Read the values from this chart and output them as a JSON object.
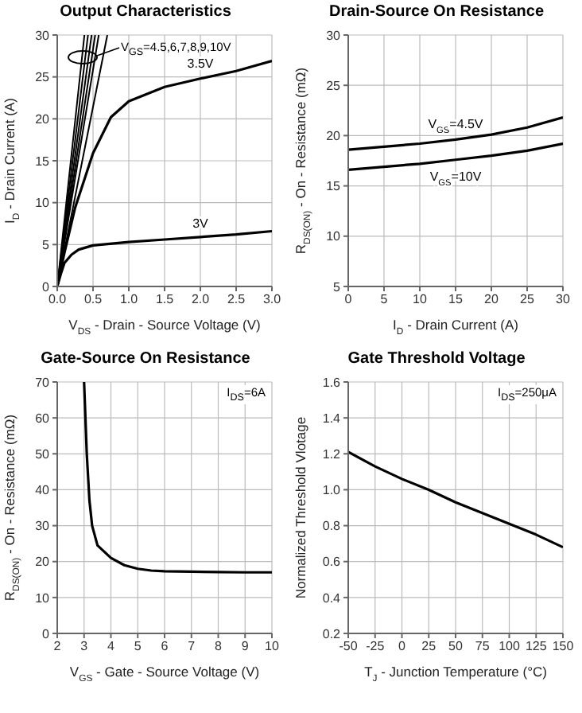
{
  "chart_data": [
    {
      "type": "line",
      "title": "Output Characteristics",
      "xlabel": "V$_{DS}$ - Drain - Source Voltage (V)",
      "ylabel": "I$_{D}$ - Drain Current (A)",
      "xlim": [
        0,
        3
      ],
      "ylim": [
        0,
        30
      ],
      "xticks": [
        {
          "value": 0,
          "label": "0.0"
        },
        0.5,
        {
          "value": 1,
          "label": "1.0"
        },
        1.5,
        {
          "value": 2,
          "label": "2.0"
        },
        2.5,
        {
          "value": 3,
          "label": "3.0"
        }
      ],
      "yticks": [
        0,
        5,
        10,
        15,
        20,
        25,
        30
      ],
      "grid": true,
      "marker": "none",
      "annotations": [
        "V$_{GS}$=4.5,6,7,8,9,10V"
      ],
      "series": [
        {
          "color": "#000000",
          "x": [
            0,
            0.38
          ],
          "values": [
            0,
            30
          ]
        },
        {
          "color": "#000000",
          "x": [
            0,
            0.43
          ],
          "values": [
            0,
            30
          ]
        },
        {
          "color": "#000000",
          "x": [
            0,
            0.48
          ],
          "values": [
            0,
            30
          ]
        },
        {
          "color": "#000000",
          "x": [
            0,
            0.53
          ],
          "values": [
            0,
            30
          ]
        },
        {
          "color": "#000000",
          "x": [
            0,
            0.58
          ],
          "values": [
            0,
            30
          ]
        },
        {
          "color": "#000000",
          "x": [
            0,
            0.7
          ],
          "values": [
            0,
            30
          ]
        },
        {
          "name": "3.5V",
          "color": "#000000",
          "x": [
            0,
            0.05,
            0.1,
            0.15,
            0.25,
            0.5,
            0.75,
            1.0,
            1.5,
            2.0,
            2.5,
            3.0
          ],
          "values": [
            0,
            2,
            4,
            5.8,
            9.4,
            15.9,
            20.2,
            22.1,
            23.8,
            24.8,
            25.7,
            26.9
          ]
        },
        {
          "name": "3V",
          "color": "#000000",
          "x": [
            0,
            0.05,
            0.1,
            0.2,
            0.3,
            0.5,
            1.0,
            1.5,
            2.0,
            2.5,
            3.0
          ],
          "values": [
            0,
            1.5,
            2.8,
            3.8,
            4.4,
            4.9,
            5.3,
            5.6,
            5.9,
            6.2,
            6.6
          ]
        }
      ]
    },
    {
      "type": "line",
      "title": "Drain-Source On Resistance",
      "xlabel": "I$_{D}$ - Drain Current (A)",
      "ylabel": "R$_{DS(ON)}$ - On - Resistance (mΩ)",
      "xlim": [
        0,
        30
      ],
      "ylim": [
        5,
        30
      ],
      "xticks": [
        0,
        5,
        10,
        15,
        20,
        25,
        30
      ],
      "yticks": [
        5,
        10,
        15,
        20,
        25,
        30
      ],
      "grid": true,
      "marker": "none",
      "series": [
        {
          "name": "V$_{GS}$=4.5V",
          "color": "#000000",
          "x": [
            0,
            5,
            10,
            15,
            20,
            25,
            30
          ],
          "values": [
            18.6,
            18.9,
            19.2,
            19.6,
            20.1,
            20.8,
            21.8
          ]
        },
        {
          "name": "V$_{GS}$=10V",
          "color": "#000000",
          "x": [
            0,
            5,
            10,
            15,
            20,
            25,
            30
          ],
          "values": [
            16.6,
            16.9,
            17.2,
            17.6,
            18.0,
            18.5,
            19.2
          ]
        }
      ]
    },
    {
      "type": "line",
      "title": "Gate-Source On Resistance",
      "xlabel": "V$_{GS}$ - Gate - Source Voltage (V)",
      "ylabel": "R$_{DS(ON)}$ - On - Resistance (mΩ)",
      "xlim": [
        2,
        10
      ],
      "ylim": [
        0,
        70
      ],
      "xticks": [
        2,
        3,
        4,
        5,
        6,
        7,
        8,
        9,
        10
      ],
      "yticks": [
        0,
        10,
        20,
        30,
        40,
        50,
        60,
        70
      ],
      "grid": true,
      "marker": "none",
      "annotations": [
        "I$_{DS}$=6A"
      ],
      "series": [
        {
          "color": "#000000",
          "x": [
            3.0,
            3.1,
            3.2,
            3.3,
            3.5,
            4,
            4.5,
            5,
            5.5,
            6,
            7,
            8,
            9,
            10
          ],
          "values": [
            70,
            50,
            37,
            30,
            24.5,
            21,
            19,
            18,
            17.5,
            17.3,
            17.2,
            17.1,
            17.0,
            17.0
          ]
        }
      ]
    },
    {
      "type": "line",
      "title": "Gate Threshold Voltage",
      "xlabel": "T$_{J}$ - Junction Temperature (°C)",
      "ylabel": "Normalized Threshold Vlotage",
      "xlim": [
        -50,
        150
      ],
      "ylim": [
        0.2,
        1.6
      ],
      "xticks": [
        -50,
        -25,
        0,
        25,
        50,
        75,
        100,
        125,
        150
      ],
      "yticks": [
        0.2,
        0.4,
        0.6,
        0.8,
        {
          "value": 1,
          "label": "1.0"
        },
        1.2,
        1.4,
        1.6
      ],
      "grid": true,
      "marker": "none",
      "annotations": [
        "I$_{DS}$=250μA"
      ],
      "series": [
        {
          "color": "#000000",
          "x": [
            -50,
            -25,
            0,
            25,
            50,
            75,
            100,
            125,
            150
          ],
          "values": [
            1.21,
            1.13,
            1.06,
            1.0,
            0.93,
            0.87,
            0.81,
            0.75,
            0.68
          ]
        }
      ]
    }
  ]
}
